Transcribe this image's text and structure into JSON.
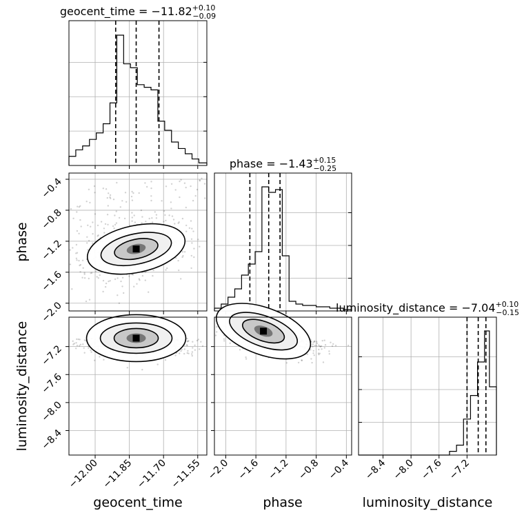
{
  "chart_data": [
    {
      "type": "histogram",
      "title": {
        "text": "geocent_time = −11.82",
        "sup": "+0.10",
        "sub": "−0.09"
      },
      "xlim": [
        -12.115,
        -11.51
      ],
      "x_ticks": [
        -12.0,
        -11.85,
        -11.7,
        -11.55
      ],
      "x_tick_labels": [
        "−12.00",
        "−11.85",
        "−11.70",
        "−11.55"
      ],
      "bin_edges": [
        -12.115,
        -12.085,
        -12.055,
        -12.025,
        -11.995,
        -11.965,
        -11.935,
        -11.905,
        -11.875,
        -11.845,
        -11.815,
        -11.785,
        -11.755,
        -11.725,
        -11.695,
        -11.665,
        -11.635,
        -11.605,
        -11.575,
        -11.545,
        -11.51
      ],
      "counts": [
        0.07,
        0.12,
        0.15,
        0.2,
        0.25,
        0.32,
        0.48,
        1.0,
        0.78,
        0.75,
        0.62,
        0.6,
        0.58,
        0.34,
        0.27,
        0.18,
        0.13,
        0.09,
        0.05,
        0.02
      ],
      "quantiles": [
        -11.91,
        -11.82,
        -11.72
      ],
      "grid": true
    },
    {
      "type": "histogram",
      "title": {
        "text": "phase = −1.43",
        "sup": "+0.15",
        "sub": "−0.25"
      },
      "xlim": [
        -2.15,
        -0.33
      ],
      "x_ticks": [
        -2.0,
        -1.6,
        -1.2,
        -0.8,
        -0.4
      ],
      "x_tick_labels": [
        "−2.0",
        "−1.6",
        "−1.2",
        "−0.8",
        "−0.4"
      ],
      "bin_edges": [
        -2.15,
        -2.06,
        -1.97,
        -1.88,
        -1.79,
        -1.7,
        -1.61,
        -1.52,
        -1.43,
        -1.34,
        -1.25,
        -1.16,
        -1.07,
        -0.98,
        -0.89,
        -0.8,
        -0.71,
        -0.62,
        -0.53,
        -0.44,
        -0.33
      ],
      "counts": [
        0.02,
        0.05,
        0.1,
        0.16,
        0.26,
        0.34,
        0.43,
        0.9,
        0.86,
        0.88,
        0.4,
        0.07,
        0.05,
        0.04,
        0.04,
        0.03,
        0.03,
        0.02,
        0.02,
        0.01
      ],
      "quantiles": [
        -1.68,
        -1.43,
        -1.28
      ],
      "grid": true
    },
    {
      "type": "histogram",
      "title": {
        "text": "luminosity_distance = −7.04",
        "sup": "+0.10",
        "sub": "−0.15"
      },
      "xlim": [
        -8.75,
        -6.78
      ],
      "x_ticks": [
        -8.4,
        -8.0,
        -7.6,
        -7.2
      ],
      "x_tick_labels": [
        "−8.4",
        "−8.0",
        "−7.6",
        "−7.2"
      ],
      "bin_edges": [
        -8.75,
        -7.45,
        -7.35,
        -7.25,
        -7.15,
        -7.05,
        -6.95,
        -6.88,
        -6.78
      ],
      "counts": [
        0.0,
        0.03,
        0.08,
        0.29,
        0.48,
        0.75,
        1.0,
        0.55
      ],
      "quantiles": [
        -7.2,
        -7.04,
        -6.93
      ],
      "grid": true
    },
    {
      "type": "scatter",
      "xlim": [
        -12.115,
        -11.51
      ],
      "ylim": [
        -2.1,
        -0.32
      ],
      "y_ticks": [
        -2.0,
        -1.6,
        -1.2,
        -0.8,
        -0.4
      ],
      "y_tick_labels": [
        "−2.0",
        "−1.6",
        "−1.2",
        "−0.8",
        "−0.4"
      ],
      "ylabel": "phase",
      "peak": [
        -11.82,
        -1.3
      ],
      "grid": true
    },
    {
      "type": "scatter",
      "xlim": [
        -12.115,
        -11.51
      ],
      "ylim": [
        -8.75,
        -6.78
      ],
      "y_ticks": [
        -8.4,
        -8.0,
        -7.6,
        -7.2
      ],
      "y_tick_labels": [
        "−8.4",
        "−8.0",
        "−7.6",
        "−7.2"
      ],
      "ylabel": "luminosity_distance",
      "xlabel": "geocent_time",
      "peak": [
        -11.82,
        -7.08
      ],
      "grid": true
    },
    {
      "type": "scatter",
      "xlim": [
        -2.15,
        -0.33
      ],
      "ylim": [
        -8.75,
        -6.78
      ],
      "xlabel": "phase",
      "peak": [
        -1.5,
        -6.98
      ],
      "grid": true
    }
  ],
  "bottom_right_xlabel": "luminosity_distance"
}
